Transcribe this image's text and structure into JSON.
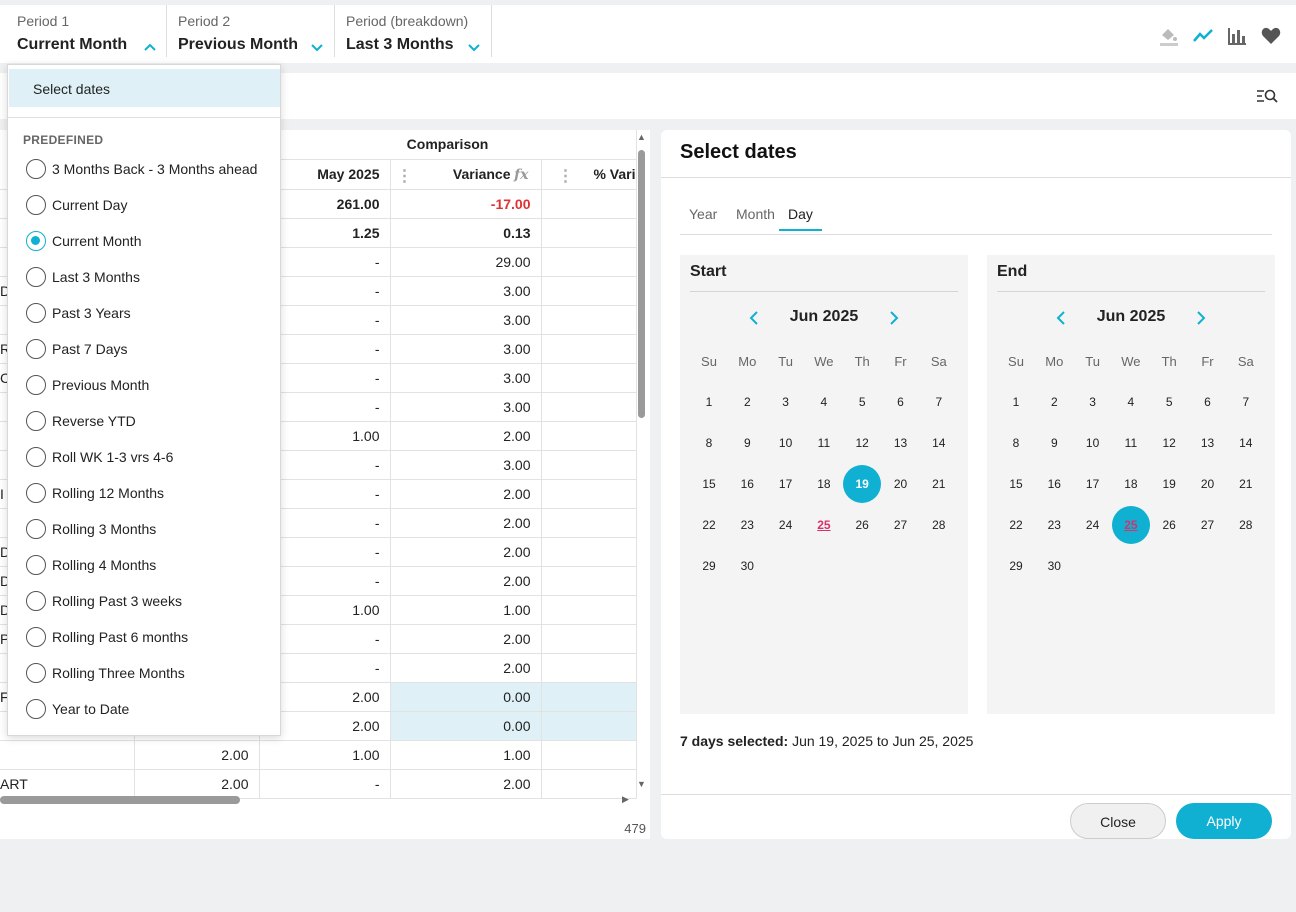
{
  "toolbar": {
    "period1": {
      "label": "Period 1",
      "value": "Current Month"
    },
    "period2": {
      "label": "Period 2",
      "value": "Previous Month"
    },
    "period3": {
      "label": "Period (breakdown)",
      "value": "Last 3 Months"
    },
    "icons": [
      "paint-bucket-icon",
      "line-chart-icon",
      "bar-chart-icon",
      "heart-icon"
    ]
  },
  "grid": {
    "group_header": "Comparison",
    "columns": [
      "May 2025",
      "Variance",
      "% Vari"
    ],
    "rows": [
      {
        "left": "",
        "a": "",
        "b": "261.00",
        "c": "-17.00",
        "bold": true,
        "neg": true
      },
      {
        "left": "",
        "a": "",
        "b": "1.25",
        "c": "0.13",
        "bold": true
      },
      {
        "left": "",
        "a": "",
        "b": "-",
        "c": "29.00"
      },
      {
        "left": "D",
        "a": "",
        "b": "-",
        "c": "3.00"
      },
      {
        "left": "",
        "a": "",
        "b": "-",
        "c": "3.00"
      },
      {
        "left": "RS",
        "a": "",
        "b": "-",
        "c": "3.00"
      },
      {
        "left": "C",
        "a": "",
        "b": "-",
        "c": "3.00"
      },
      {
        "left": "",
        "a": "",
        "b": "-",
        "c": "3.00"
      },
      {
        "left": "",
        "a": "",
        "b": "1.00",
        "c": "2.00"
      },
      {
        "left": "",
        "a": "",
        "b": "-",
        "c": "3.00"
      },
      {
        "left": "I",
        "a": "",
        "b": "-",
        "c": "2.00"
      },
      {
        "left": "",
        "a": "",
        "b": "-",
        "c": "2.00"
      },
      {
        "left": "D",
        "a": "",
        "b": "-",
        "c": "2.00"
      },
      {
        "left": "D",
        "a": "",
        "b": "-",
        "c": "2.00"
      },
      {
        "left": "D",
        "a": "",
        "b": "1.00",
        "c": "1.00"
      },
      {
        "left": "P",
        "a": "",
        "b": "-",
        "c": "2.00"
      },
      {
        "left": "",
        "a": "",
        "b": "-",
        "c": "2.00"
      },
      {
        "left": "F",
        "a": "",
        "b": "2.00",
        "c": "0.00",
        "hl": true
      },
      {
        "left": "",
        "a": "",
        "b": "2.00",
        "c": "0.00",
        "hl": true
      },
      {
        "left": "",
        "a": "2.00",
        "b": "1.00",
        "c": "1.00"
      },
      {
        "left": "ART",
        "a": "2.00",
        "b": "-",
        "c": "2.00"
      }
    ],
    "row_count": "479"
  },
  "dropdown": {
    "select_dates": "Select dates",
    "section": "PREDEFINED",
    "selected_index": 2,
    "options": [
      "3 Months Back - 3 Months ahead",
      "Current Day",
      "Current Month",
      "Last 3 Months",
      "Past 3 Years",
      "Past 7 Days",
      "Previous Month",
      "Reverse YTD",
      "Roll WK 1-3 vrs 4-6",
      "Rolling 12 Months",
      "Rolling 3 Months",
      "Rolling 4 Months",
      "Rolling Past 3 weeks",
      "Rolling Past 6 months",
      "Rolling Three Months",
      "Year to Date"
    ]
  },
  "panel": {
    "title": "Select dates",
    "tabs": [
      "Year",
      "Month",
      "Day"
    ],
    "active_tab": "Day",
    "start": {
      "heading": "Start",
      "month": "Jun 2025",
      "selected_day": 19,
      "today": 25
    },
    "end": {
      "heading": "End",
      "month": "Jun 2025",
      "selected_day": 25,
      "today": 25
    },
    "weekdays": [
      "Su",
      "Mo",
      "Tu",
      "We",
      "Th",
      "Fr",
      "Sa"
    ],
    "first_weekday": 0,
    "days_in_month": 30,
    "summary_bold": "7 days selected:",
    "summary_range": "Jun 19, 2025 to Jun 25, 2025",
    "close_label": "Close",
    "apply_label": "Apply",
    "accent_color": "#0fb0d2"
  }
}
